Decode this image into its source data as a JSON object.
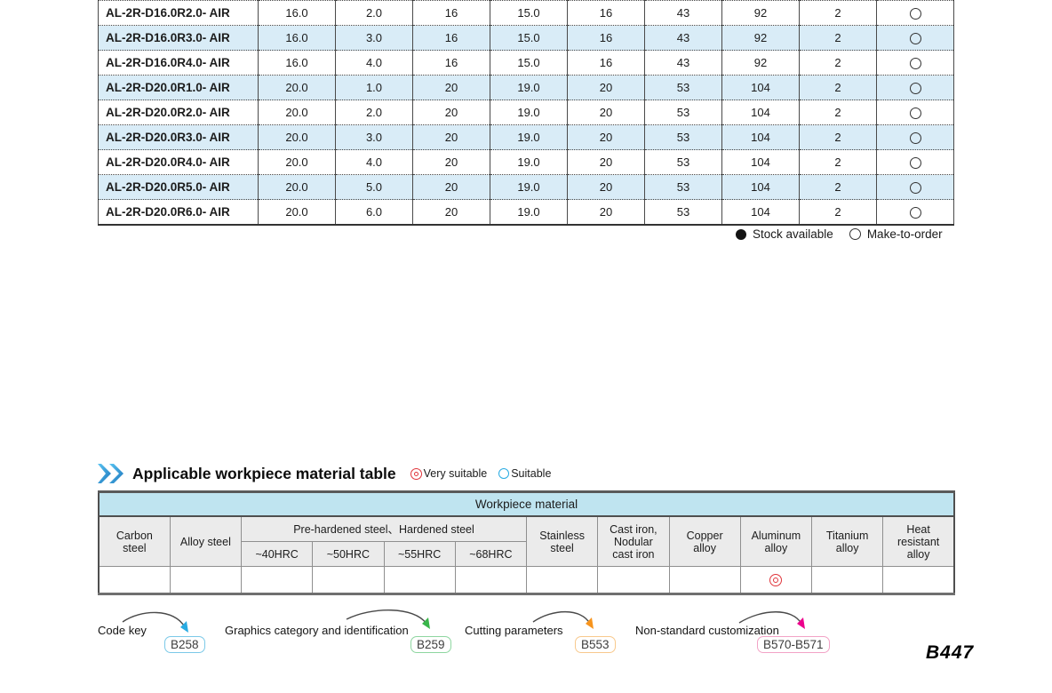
{
  "spec_table": {
    "rows": [
      {
        "model": "AL-2R-D16.0R2.0- AIR",
        "values": [
          "16.0",
          "2.0",
          "16",
          "15.0",
          "16",
          "43",
          "92",
          "2"
        ],
        "availability": "make-to-order"
      },
      {
        "model": "AL-2R-D16.0R3.0- AIR",
        "values": [
          "16.0",
          "3.0",
          "16",
          "15.0",
          "16",
          "43",
          "92",
          "2"
        ],
        "availability": "make-to-order"
      },
      {
        "model": "AL-2R-D16.0R4.0- AIR",
        "values": [
          "16.0",
          "4.0",
          "16",
          "15.0",
          "16",
          "43",
          "92",
          "2"
        ],
        "availability": "make-to-order"
      },
      {
        "model": "AL-2R-D20.0R1.0- AIR",
        "values": [
          "20.0",
          "1.0",
          "20",
          "19.0",
          "20",
          "53",
          "104",
          "2"
        ],
        "availability": "make-to-order"
      },
      {
        "model": "AL-2R-D20.0R2.0- AIR",
        "values": [
          "20.0",
          "2.0",
          "20",
          "19.0",
          "20",
          "53",
          "104",
          "2"
        ],
        "availability": "make-to-order"
      },
      {
        "model": "AL-2R-D20.0R3.0- AIR",
        "values": [
          "20.0",
          "3.0",
          "20",
          "19.0",
          "20",
          "53",
          "104",
          "2"
        ],
        "availability": "make-to-order"
      },
      {
        "model": "AL-2R-D20.0R4.0- AIR",
        "values": [
          "20.0",
          "4.0",
          "20",
          "19.0",
          "20",
          "53",
          "104",
          "2"
        ],
        "availability": "make-to-order"
      },
      {
        "model": "AL-2R-D20.0R5.0- AIR",
        "values": [
          "20.0",
          "5.0",
          "20",
          "19.0",
          "20",
          "53",
          "104",
          "2"
        ],
        "availability": "make-to-order"
      },
      {
        "model": "AL-2R-D20.0R6.0- AIR",
        "values": [
          "20.0",
          "6.0",
          "20",
          "19.0",
          "20",
          "53",
          "104",
          "2"
        ],
        "availability": "make-to-order"
      }
    ]
  },
  "availability_legend": {
    "stock_available": "Stock available",
    "make_to_order": "Make-to-order"
  },
  "section": {
    "title": "Applicable workpiece material table",
    "very_suitable": "Very suitable",
    "suitable": "Suitable"
  },
  "material_table": {
    "band": "Workpiece material",
    "group_header": "Pre-hardened steel、Hardened steel",
    "columns": [
      "Carbon steel",
      "Alloy steel",
      "Stainless steel",
      "Cast iron, Nodular cast iron",
      "Copper alloy",
      "Aluminum alloy",
      "Titanium alloy",
      "Heat resistant alloy"
    ],
    "sub_columns": [
      "~40HRC",
      "~50HRC",
      "~55HRC",
      "~68HRC"
    ],
    "ratings": [
      "",
      "",
      "",
      "",
      "",
      "",
      "",
      "",
      "",
      "very-suitable",
      "",
      ""
    ]
  },
  "footnotes": [
    {
      "label": "Code key",
      "badge": "B258",
      "accent": "#29abe2",
      "badge_border": "#7bc9e8"
    },
    {
      "label": "Graphics category and identification",
      "badge": "B259",
      "accent": "#39b54a",
      "badge_border": "#8ed6a0"
    },
    {
      "label": "Cutting parameters",
      "badge": "B553",
      "accent": "#f7941d",
      "badge_border": "#f8c98d"
    },
    {
      "label": "Non-standard customization",
      "badge": "B570-B571",
      "accent": "#ec008c",
      "badge_border": "#f2a3c6"
    }
  ],
  "page_number": "B447",
  "colors": {
    "row_alt": "#d9ecf7",
    "band_cyan": "#bfe4f0",
    "header_gray": "#ebebeb",
    "very_suitable_red": "#e0353b",
    "suitable_blue": "#29abe2"
  }
}
